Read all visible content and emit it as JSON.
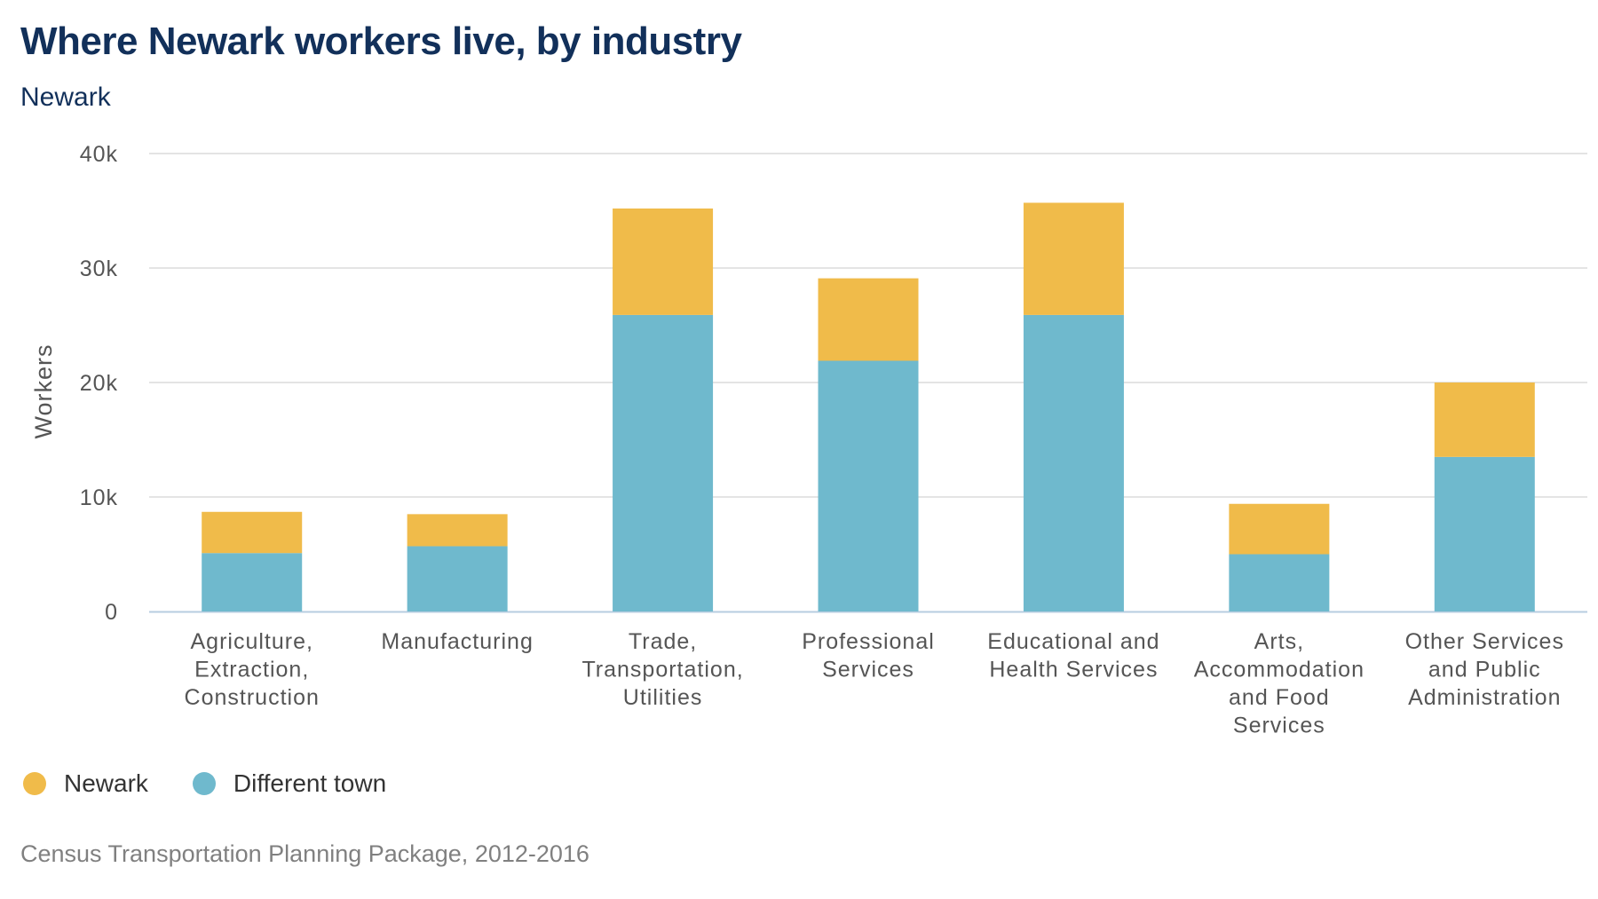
{
  "chart_data": {
    "type": "bar",
    "stacked": true,
    "title": "Where Newark workers live, by industry",
    "subtitle": "Newark",
    "ylabel": "Workers",
    "xlabel": "",
    "ylim": [
      0,
      40000
    ],
    "yticks": [
      0,
      10000,
      20000,
      30000,
      40000
    ],
    "ytick_labels": [
      "0",
      "10k",
      "20k",
      "30k",
      "40k"
    ],
    "grid": true,
    "legend_position": "bottom-left",
    "categories": [
      [
        "Agriculture,",
        "Extraction,",
        "Construction"
      ],
      [
        "Manufacturing"
      ],
      [
        "Trade,",
        "Transportation,",
        "Utilities"
      ],
      [
        "Professional",
        "Services"
      ],
      [
        "Educational and",
        "Health Services"
      ],
      [
        "Arts,",
        "Accommodation",
        "and Food",
        "Services"
      ],
      [
        "Other Services",
        "and Public",
        "Administration"
      ]
    ],
    "series": [
      {
        "name": "Different town",
        "color": "#6fb9cd",
        "values": [
          5100,
          5700,
          25900,
          21900,
          25900,
          5000,
          13500
        ]
      },
      {
        "name": "Newark",
        "color": "#f0bb4a",
        "values": [
          3600,
          2800,
          9300,
          7200,
          9800,
          4400,
          6500
        ]
      }
    ],
    "legend": [
      {
        "name": "Newark",
        "color": "#f0bb4a"
      },
      {
        "name": "Different town",
        "color": "#6fb9cd"
      }
    ],
    "source": "Census Transportation Planning Package, 2012-2016"
  }
}
